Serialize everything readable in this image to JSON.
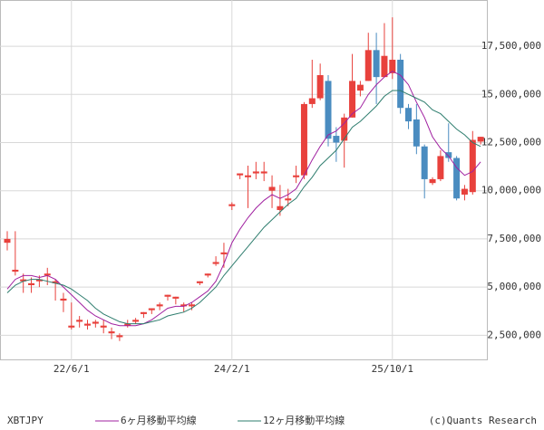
{
  "chart_data": {
    "type": "candlestick",
    "symbol": "XBTJPY",
    "source": "(c)Quants Research",
    "categories": [
      null,
      null,
      null,
      null,
      null,
      null,
      null,
      null,
      null,
      null,
      null,
      null,
      null,
      null,
      null,
      null,
      null,
      null,
      null,
      null,
      null,
      null,
      null,
      null,
      null,
      null,
      null,
      null,
      null,
      null,
      null,
      null,
      null,
      null,
      null,
      null,
      null,
      null,
      null,
      null,
      null,
      null,
      null,
      null,
      null,
      null,
      null,
      null,
      null,
      null,
      null,
      null,
      null,
      null,
      null,
      null,
      null,
      null,
      null,
      null
    ],
    "xticks": [
      {
        "value": 8,
        "label": "22/6/1"
      },
      {
        "value": 28,
        "label": "24/2/1"
      },
      {
        "value": 48,
        "label": "25/10/1"
      }
    ],
    "ylim": [
      1200000,
      19900000
    ],
    "yticks": [
      {
        "value": 2500000,
        "label": "2,500,000"
      },
      {
        "value": 5000000,
        "label": "5,000,000"
      },
      {
        "value": 7500000,
        "label": "7,500,000"
      },
      {
        "value": 10000000,
        "label": "10,000,000"
      },
      {
        "value": 12500000,
        "label": "12,500,000"
      },
      {
        "value": 15000000,
        "label": "15,000,000"
      },
      {
        "value": 17500000,
        "label": "17,500,000"
      }
    ],
    "grid": true,
    "up_color": "#e8413c",
    "down_color": "#4a8cc0",
    "open": [
      7300000,
      5800000,
      5300000,
      5100000,
      5300000,
      5600000,
      5200000,
      4300000,
      2900000,
      3200000,
      3000000,
      3100000,
      2900000,
      2600000,
      2400000,
      3000000,
      3200000,
      3600000,
      3800000,
      4000000,
      4500000,
      4400000,
      4000000,
      4000000,
      5200000,
      5600000,
      6200000,
      6700000,
      9200000,
      10800000,
      10700000,
      10900000,
      10900000,
      10000000,
      9000000,
      9500000,
      10700000,
      10800000,
      14500000,
      14800000,
      15700000,
      12850000,
      12600000,
      13800000,
      15200000,
      15700000,
      17300000,
      15900000,
      16100000,
      16800000,
      14300000,
      13700000,
      12300000,
      10400000,
      10600000,
      12000000,
      11700000,
      9800000,
      9930000,
      12550000
    ],
    "high": [
      7900000,
      7900000,
      5700000,
      5500000,
      5600000,
      6000000,
      5400000,
      4700000,
      4200000,
      3500000,
      3300000,
      3300000,
      3300000,
      2900000,
      2600000,
      3300000,
      3400000,
      3700000,
      3900000,
      4200000,
      4600000,
      4500000,
      4200000,
      4200000,
      5300000,
      5700000,
      6600000,
      7300000,
      9400000,
      10900000,
      11300000,
      11500000,
      11500000,
      10800000,
      10300000,
      10100000,
      11300000,
      14600000,
      16800000,
      16600000,
      16000000,
      13300000,
      14000000,
      17100000,
      15700000,
      18200000,
      18200000,
      18700000,
      19000000,
      17100000,
      14500000,
      14500000,
      12400000,
      10700000,
      12100000,
      13500000,
      11800000,
      10300000,
      13100000,
      12800000
    ],
    "low": [
      6900000,
      5600000,
      4700000,
      4700000,
      5000000,
      5100000,
      4300000,
      3700000,
      2800000,
      2900000,
      2800000,
      2900000,
      2600000,
      2300000,
      2200000,
      2900000,
      3100000,
      3400000,
      3600000,
      3800000,
      4300000,
      4100000,
      3700000,
      3800000,
      5100000,
      5500000,
      6100000,
      6000000,
      9000000,
      10600000,
      9100000,
      10600000,
      10500000,
      9100000,
      8700000,
      9200000,
      10400000,
      10600000,
      14300000,
      14700000,
      12300000,
      11500000,
      11200000,
      13800000,
      14900000,
      15700000,
      14500000,
      15900000,
      15800000,
      14000000,
      13200000,
      11900000,
      9600000,
      10300000,
      10500000,
      11500000,
      9500000,
      9500000,
      9800000,
      12400000
    ],
    "close": [
      7500000,
      5900000,
      5400000,
      5200000,
      5400000,
      5700000,
      5300000,
      4400000,
      3000000,
      3300000,
      3100000,
      3200000,
      3000000,
      2700000,
      2500000,
      3100000,
      3300000,
      3700000,
      3900000,
      4100000,
      4600000,
      4500000,
      4100000,
      4100000,
      5300000,
      5700000,
      6300000,
      6800000,
      9300000,
      10900000,
      10800000,
      11000000,
      11000000,
      10200000,
      9200000,
      9600000,
      10800000,
      14500000,
      14800000,
      16000000,
      12700000,
      12500000,
      13800000,
      15700000,
      15500000,
      17300000,
      15900000,
      17000000,
      16800000,
      14300000,
      13600000,
      12300000,
      10600000,
      10600000,
      11800000,
      11700000,
      9600000,
      10100000,
      12640000,
      12800000
    ],
    "series": [
      {
        "name": "6ヶ月移動平均線",
        "color": "#a020a0",
        "values": [
          4900000,
          5400000,
          5600000,
          5600000,
          5500000,
          5600000,
          5400000,
          5000000,
          4600000,
          4200000,
          3800000,
          3500000,
          3300000,
          3100000,
          3000000,
          3000000,
          3000000,
          3100000,
          3300000,
          3600000,
          3900000,
          4000000,
          4000000,
          4200000,
          4500000,
          4800000,
          5300000,
          6200000,
          7300000,
          8000000,
          8600000,
          9100000,
          9500000,
          9800000,
          9600000,
          9800000,
          10100000,
          10800000,
          11600000,
          12300000,
          12900000,
          13100000,
          13500000,
          14000000,
          14300000,
          15000000,
          15500000,
          15900000,
          16200000,
          16000000,
          15500000,
          14600000,
          13800000,
          12800000,
          12200000,
          11800000,
          11200000,
          10800000,
          11000000,
          11500000
        ]
      },
      {
        "name": "12ヶ月移動平均線",
        "color": "#2e7d6e",
        "values": [
          4700000,
          5100000,
          5300000,
          5400000,
          5400000,
          5300000,
          5200000,
          5100000,
          4900000,
          4600000,
          4300000,
          3900000,
          3600000,
          3400000,
          3200000,
          3100000,
          3100000,
          3100000,
          3200000,
          3300000,
          3500000,
          3600000,
          3700000,
          3900000,
          4200000,
          4600000,
          5000000,
          5600000,
          6100000,
          6600000,
          7100000,
          7600000,
          8100000,
          8500000,
          8900000,
          9300000,
          9600000,
          10200000,
          10700000,
          11300000,
          11700000,
          12100000,
          12700000,
          13300000,
          13600000,
          14000000,
          14400000,
          14900000,
          15200000,
          15200000,
          15000000,
          14800000,
          14600000,
          14200000,
          14000000,
          13600000,
          13200000,
          12900000,
          12500000,
          12300000
        ]
      }
    ]
  }
}
